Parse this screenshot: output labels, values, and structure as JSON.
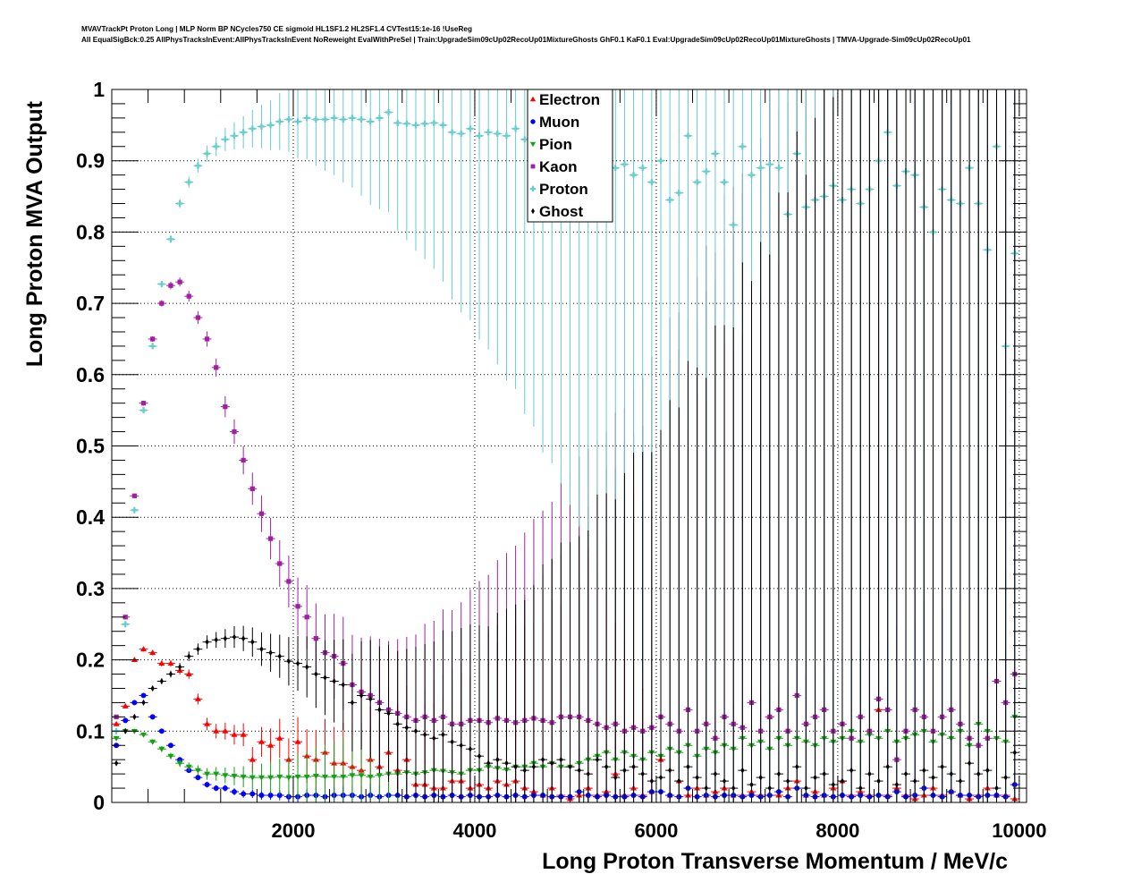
{
  "title_line1": "MVAVTrackPt Proton Long | MLP Norm BP NCycles750 CE sigmoid HL1SF1.2 HL2SF1.4 CVTest15:1e-16 !UseReg",
  "title_line2": "All EqualSigBck:0.25 AllPhysTracksInEvent:AllPhysTracksInEvent NoReweight EvalWithPreSel | Train:UpgradeSim09cUp02RecoUp01MixtureGhosts GhF0.1 KaF0.1 Eval:UpgradeSim09cUp02RecoUp01MixtureGhosts | TMVA-Upgrade-Sim09cUp02RecoUp01",
  "chart_data": {
    "type": "scatter",
    "xlabel": "Long Proton Transverse Momentum / MeV/c",
    "ylabel": "Long Proton MVA Output",
    "xlim": [
      0,
      10080
    ],
    "ylim": [
      0,
      1
    ],
    "grid": true,
    "legend_placement": "top-center",
    "x_ticks": [
      2000,
      4000,
      6000,
      8000,
      10000
    ],
    "x_tick_labels": [
      "2000",
      "4000",
      "6000",
      "8000",
      "10000"
    ],
    "y_ticks": [
      0,
      0.1,
      0.2,
      0.3,
      0.4,
      0.5,
      0.6,
      0.7,
      0.8,
      0.9,
      1
    ],
    "y_tick_labels": [
      "0",
      "0.1",
      "0.2",
      "0.3",
      "0.4",
      "0.5",
      "0.6",
      "0.7",
      "0.8",
      "0.9",
      "1"
    ],
    "bin_width": 100,
    "x_start": 50,
    "series": [
      {
        "name": "Electron",
        "color": "#ff0000",
        "marker": "triangle-up",
        "values": [
          0.11,
          0.135,
          0.2,
          0.215,
          0.21,
          0.195,
          0.195,
          0.185,
          0.18,
          0.145,
          0.11,
          0.1,
          0.1,
          0.095,
          0.095,
          0.06,
          0.085,
          0.08,
          0.09,
          0.06,
          0.085,
          0.065,
          0.06,
          0.07,
          0.055,
          0.055,
          0.05,
          0.045,
          0.06,
          0.05,
          0.07,
          0.045,
          0.06,
          0.025,
          0.025,
          0.02,
          0.02,
          0.03,
          0.03,
          0.02,
          0.025,
          0.02,
          0.03,
          0.025,
          0.03,
          0.02,
          0.015,
          0.01,
          0.02,
          0.01,
          0.005,
          0.01,
          0.02,
          0.01,
          0.015,
          0.04,
          0.01,
          0.02,
          0.01,
          0.015,
          0.06,
          0.01,
          0.03,
          0.01,
          0.02,
          0.01,
          0.015,
          0.02,
          0.01,
          0.01,
          0.015,
          0.01,
          0.12,
          0.01,
          0.02,
          0.03,
          0.01,
          0.015,
          0.01,
          0.02,
          0.03,
          0.01,
          0.015,
          0.01,
          0.13,
          0.01,
          0.02,
          0.01,
          0.005,
          0.01,
          0.02,
          0.01,
          0.015,
          0.01,
          0.005,
          0.01,
          0.02,
          0.01,
          0.01,
          0.005
        ]
      },
      {
        "name": "Muon",
        "color": "#0000ff",
        "marker": "circle",
        "values": [
          0.08,
          0.115,
          0.14,
          0.15,
          0.12,
          0.1,
          0.08,
          0.06,
          0.045,
          0.035,
          0.025,
          0.02,
          0.02,
          0.015,
          0.012,
          0.012,
          0.01,
          0.01,
          0.01,
          0.008,
          0.008,
          0.01,
          0.01,
          0.008,
          0.01,
          0.01,
          0.01,
          0.008,
          0.01,
          0.008,
          0.01,
          0.01,
          0.008,
          0.01,
          0.008,
          0.01,
          0.008,
          0.01,
          0.008,
          0.01,
          0.008,
          0.008,
          0.01,
          0.008,
          0.01,
          0.008,
          0.01,
          0.01,
          0.008,
          0.008,
          0.008,
          0.015,
          0.01,
          0.008,
          0.01,
          0.008,
          0.008,
          0.01,
          0.008,
          0.015,
          0.015,
          0.01,
          0.008,
          0.02,
          0.008,
          0.01,
          0.008,
          0.01,
          0.01,
          0.008,
          0.01,
          0.008,
          0.01,
          0.015,
          0.008,
          0.02,
          0.01,
          0.008,
          0.01,
          0.008,
          0.01,
          0.008,
          0.01,
          0.008,
          0.01,
          0.008,
          0.015,
          0.008,
          0.01,
          0.02,
          0.01,
          0.008,
          0.015,
          0.01,
          0.01,
          0.008,
          0.01,
          0.01,
          0.008,
          0.025
        ]
      },
      {
        "name": "Pion",
        "color": "#16a016",
        "marker": "triangle-down",
        "values": [
          0.09,
          0.1,
          0.1,
          0.095,
          0.085,
          0.075,
          0.065,
          0.055,
          0.05,
          0.045,
          0.04,
          0.04,
          0.038,
          0.037,
          0.036,
          0.035,
          0.035,
          0.035,
          0.036,
          0.035,
          0.036,
          0.036,
          0.037,
          0.036,
          0.036,
          0.036,
          0.038,
          0.038,
          0.036,
          0.038,
          0.04,
          0.04,
          0.042,
          0.04,
          0.042,
          0.045,
          0.044,
          0.042,
          0.04,
          0.045,
          0.045,
          0.05,
          0.048,
          0.046,
          0.05,
          0.05,
          0.055,
          0.05,
          0.055,
          0.05,
          0.05,
          0.055,
          0.06,
          0.065,
          0.07,
          0.06,
          0.07,
          0.065,
          0.06,
          0.07,
          0.065,
          0.075,
          0.07,
          0.08,
          0.065,
          0.075,
          0.07,
          0.08,
          0.075,
          0.09,
          0.08,
          0.085,
          0.075,
          0.09,
          0.08,
          0.09,
          0.085,
          0.08,
          0.09,
          0.085,
          0.09,
          0.1,
          0.085,
          0.095,
          0.09,
          0.1,
          0.085,
          0.09,
          0.095,
          0.1,
          0.085,
          0.095,
          0.09,
          0.1,
          0.08,
          0.11,
          0.1,
          0.09,
          0.085,
          0.12
        ]
      },
      {
        "name": "Kaon",
        "color": "#a020a0",
        "marker": "square",
        "values": [
          0.12,
          0.26,
          0.43,
          0.56,
          0.65,
          0.7,
          0.725,
          0.73,
          0.71,
          0.68,
          0.65,
          0.61,
          0.555,
          0.52,
          0.48,
          0.44,
          0.405,
          0.37,
          0.335,
          0.31,
          0.275,
          0.26,
          0.23,
          0.21,
          0.205,
          0.195,
          0.165,
          0.155,
          0.15,
          0.14,
          0.13,
          0.125,
          0.12,
          0.115,
          0.12,
          0.115,
          0.12,
          0.11,
          0.11,
          0.115,
          0.115,
          0.112,
          0.118,
          0.115,
          0.112,
          0.115,
          0.118,
          0.115,
          0.112,
          0.12,
          0.12,
          0.12,
          0.115,
          0.11,
          0.105,
          0.11,
          0.1,
          0.105,
          0.1,
          0.105,
          0.12,
          0.11,
          0.1,
          0.13,
          0.1,
          0.11,
          0.09,
          0.12,
          0.11,
          0.105,
          0.14,
          0.1,
          0.12,
          0.13,
          0.1,
          0.15,
          0.11,
          0.12,
          0.13,
          0.1,
          0.11,
          0.09,
          0.12,
          0.1,
          0.145,
          0.13,
          0.06,
          0.1,
          0.13,
          0.12,
          0.1,
          0.12,
          0.13,
          0.11,
          0.09,
          0.08,
          0.09,
          0.17,
          0.14,
          0.18
        ]
      },
      {
        "name": "Proton",
        "color": "#66cccc",
        "marker": "plus",
        "values": [
          0.1,
          0.25,
          0.41,
          0.55,
          0.64,
          0.727,
          0.79,
          0.84,
          0.87,
          0.893,
          0.91,
          0.92,
          0.93,
          0.935,
          0.94,
          0.945,
          0.948,
          0.95,
          0.955,
          0.958,
          0.955,
          0.96,
          0.958,
          0.958,
          0.96,
          0.958,
          0.96,
          0.958,
          0.955,
          0.96,
          0.968,
          0.953,
          0.952,
          0.95,
          0.952,
          0.953,
          0.95,
          0.94,
          0.938,
          0.945,
          0.935,
          0.94,
          0.938,
          0.935,
          0.945,
          0.93,
          0.935,
          0.92,
          0.93,
          0.925,
          0.92,
          0.915,
          0.91,
          0.9,
          0.905,
          0.89,
          0.895,
          0.88,
          0.89,
          0.87,
          0.9,
          0.845,
          0.855,
          0.935,
          0.87,
          0.885,
          0.91,
          0.87,
          0.81,
          0.92,
          0.88,
          0.89,
          0.895,
          0.89,
          0.825,
          0.91,
          0.835,
          0.845,
          0.85,
          0.865,
          0.845,
          0.86,
          0.84,
          0.86,
          0.9,
          0.94,
          0.865,
          0.885,
          0.88,
          0.835,
          0.8,
          0.86,
          0.845,
          0.84,
          0.89,
          0.84,
          0.775,
          0.92,
          0.64,
          0.77
        ]
      },
      {
        "name": "Ghost",
        "color": "#000000",
        "marker": "diamond",
        "values": [
          0.055,
          0.1,
          0.12,
          0.14,
          0.16,
          0.17,
          0.18,
          0.19,
          0.205,
          0.215,
          0.225,
          0.228,
          0.23,
          0.232,
          0.23,
          0.225,
          0.215,
          0.21,
          0.205,
          0.198,
          0.195,
          0.19,
          0.18,
          0.175,
          0.17,
          0.165,
          0.14,
          0.15,
          0.145,
          0.13,
          0.125,
          0.11,
          0.105,
          0.1,
          0.095,
          0.09,
          0.095,
          0.085,
          0.08,
          0.075,
          0.065,
          0.055,
          0.06,
          0.055,
          0.05,
          0.045,
          0.05,
          0.06,
          0.055,
          0.06,
          0.05,
          0.045,
          0.04,
          0.06,
          0.05,
          0.035,
          0.045,
          0.05,
          0.04,
          0.03,
          0.035,
          0.045,
          0.03,
          0.05,
          0.035,
          0.02,
          0.04,
          0.03,
          0.02,
          0.045,
          0.025,
          0.035,
          0.02,
          0.04,
          0.03,
          0.05,
          0.02,
          0.035,
          0.04,
          0.025,
          0.03,
          0.045,
          0.02,
          0.04,
          0.03,
          0.05,
          0.025,
          0.04,
          0.03,
          0.045,
          0.035,
          0.05,
          0.04,
          0.03,
          0.055,
          0.04,
          0.045,
          0.02,
          0.035,
          0.07
        ]
      }
    ]
  }
}
